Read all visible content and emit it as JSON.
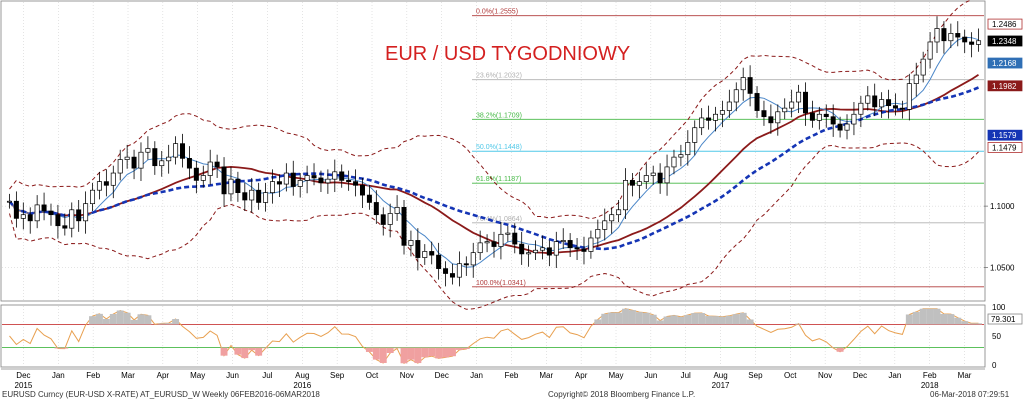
{
  "chart_data": {
    "type": "candlestick",
    "title": "EUR / USD TYGODNIOWY",
    "instrument": "EURUSD Curncy (EUR-USD X-RATE) AT_EURUSD_W  Weekly 06FEB2016-06MAR2018",
    "ylim": [
      1.025,
      1.265
    ],
    "y_ticks": [
      1.05,
      1.1
    ],
    "y_tick_labels": [
      "1.0500",
      "1.1000"
    ],
    "fib_levels": [
      {
        "label": "0.0%(1.2555)",
        "value": 1.2555,
        "color": "#b03a3a"
      },
      {
        "label": "23.6%(1.2032)",
        "value": 1.2032,
        "color": "#b0b0b0"
      },
      {
        "label": "38.2%(1.1709)",
        "value": 1.1709,
        "color": "#45b845"
      },
      {
        "label": "50.0%(1.1448)",
        "value": 1.1448,
        "color": "#50c8e8"
      },
      {
        "label": "61.8%(1.1187)",
        "value": 1.1187,
        "color": "#45b845"
      },
      {
        "label": "76.4%(1.0864)",
        "value": 1.0864,
        "color": "#b0b0b0"
      },
      {
        "label": "100.0%(1.0341)",
        "value": 1.0341,
        "color": "#b03a3a"
      }
    ],
    "last_values": [
      {
        "label": "1.2486",
        "value": 1.2486,
        "bg": "#ffffff",
        "fg": "#000000",
        "border": "#b03030"
      },
      {
        "label": "1.2348",
        "value": 1.2348,
        "bg": "#000000",
        "fg": "#ffffff",
        "border": "#000000"
      },
      {
        "label": "1.2168",
        "value": 1.2168,
        "bg": "#2f6fb5",
        "fg": "#ffffff",
        "border": "#2f6fb5"
      },
      {
        "label": "1.1982",
        "value": 1.1982,
        "bg": "#8b1a1a",
        "fg": "#ffffff",
        "border": "#8b1a1a"
      },
      {
        "label": "1.1579",
        "value": 1.1579,
        "bg": "#1535b5",
        "fg": "#ffffff",
        "border": "#1535b5"
      },
      {
        "label": "1.1479",
        "value": 1.1479,
        "bg": "#ffffff",
        "fg": "#000000",
        "border": "#b03030"
      }
    ],
    "candles_weekly_close": [
      1.104,
      1.09,
      1.093,
      1.088,
      1.101,
      1.096,
      1.093,
      1.084,
      1.082,
      1.097,
      1.088,
      1.102,
      1.113,
      1.12,
      1.117,
      1.127,
      1.138,
      1.14,
      1.131,
      1.144,
      1.147,
      1.133,
      1.137,
      1.14,
      1.151,
      1.139,
      1.131,
      1.121,
      1.125,
      1.136,
      1.132,
      1.11,
      1.122,
      1.111,
      1.105,
      1.113,
      1.103,
      1.111,
      1.12,
      1.118,
      1.127,
      1.116,
      1.121,
      1.125,
      1.123,
      1.119,
      1.122,
      1.128,
      1.121,
      1.12,
      1.117,
      1.109,
      1.103,
      1.093,
      1.085,
      1.094,
      1.099,
      1.068,
      1.072,
      1.058,
      1.063,
      1.06,
      1.049,
      1.045,
      1.042,
      1.053,
      1.052,
      1.062,
      1.07,
      1.071,
      1.067,
      1.077,
      1.078,
      1.069,
      1.061,
      1.062,
      1.064,
      1.066,
      1.06,
      1.071,
      1.072,
      1.066,
      1.065,
      1.063,
      1.074,
      1.081,
      1.088,
      1.093,
      1.097,
      1.121,
      1.117,
      1.12,
      1.125,
      1.127,
      1.119,
      1.132,
      1.14,
      1.142,
      1.152,
      1.164,
      1.172,
      1.17,
      1.175,
      1.178,
      1.185,
      1.195,
      1.205,
      1.192,
      1.178,
      1.173,
      1.168,
      1.177,
      1.18,
      1.185,
      1.193,
      1.176,
      1.17,
      1.175,
      1.173,
      1.167,
      1.162,
      1.167,
      1.175,
      1.184,
      1.19,
      1.181,
      1.187,
      1.182,
      1.18,
      1.179,
      1.2,
      1.207,
      1.22,
      1.234,
      1.245,
      1.235,
      1.241,
      1.238,
      1.234,
      1.232,
      1.235
    ],
    "series": [
      {
        "name": "Bollinger",
        "style": "dashed",
        "color": "#8b1a1a"
      },
      {
        "name": "MA",
        "style": "solid",
        "color": "#8b1a1a"
      },
      {
        "name": "MA fast",
        "style": "solid",
        "color": "#4a86c8"
      },
      {
        "name": "MA dashed",
        "style": "dashed",
        "color": "#1535b5"
      }
    ],
    "oscillator": {
      "ylim": [
        0,
        100
      ],
      "y_ticks": [
        0,
        50,
        100
      ],
      "y_tick_labels": [
        "0",
        "50",
        "100"
      ],
      "levels": [
        70,
        30
      ],
      "last_value_label": "79.301",
      "last_value": 79.301
    },
    "x_month_labels": [
      "Dec",
      "Jan",
      "Feb",
      "Mar",
      "Apr",
      "May",
      "Jun",
      "Jul",
      "Aug",
      "Sep",
      "Oct",
      "Nov",
      "Dec",
      "Jan",
      "Feb",
      "Mar",
      "Apr",
      "May",
      "Jun",
      "Jul",
      "Aug",
      "Sep",
      "Oct",
      "Nov",
      "Dec",
      "Jan",
      "Feb",
      "Mar"
    ],
    "x_year_labels": [
      "2015",
      "2016",
      "2017",
      "2018"
    ]
  },
  "footer": {
    "left": "EURUSD Curncy (EUR-USD X-RATE) AT_EURUSD_W  Weekly 06FEB2016-06MAR2018",
    "center": "Copyright© 2018 Bloomberg Finance L.P.",
    "right": "06-Mar-2018 07:29:51"
  }
}
